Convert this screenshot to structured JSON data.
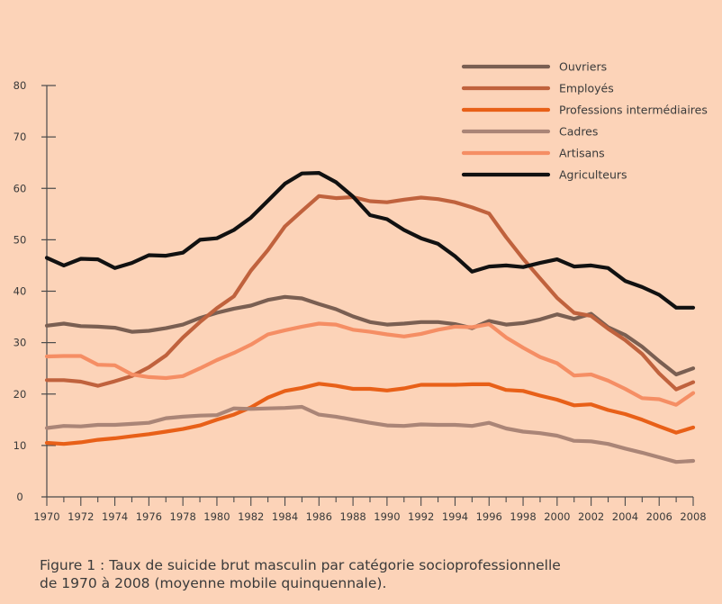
{
  "caption": {
    "line1": "Figure 1 : Taux de suicide brut masculin par catégorie socioprofessionnelle",
    "line2": "de 1970 à 2008 (moyenne mobile quinquennale)."
  },
  "chart_data": {
    "type": "line",
    "x": [
      1970,
      1971,
      1972,
      1973,
      1974,
      1975,
      1976,
      1977,
      1978,
      1979,
      1980,
      1981,
      1982,
      1983,
      1984,
      1985,
      1986,
      1987,
      1988,
      1989,
      1990,
      1991,
      1992,
      1993,
      1994,
      1995,
      1996,
      1997,
      1998,
      1999,
      2000,
      2001,
      2002,
      2003,
      2004,
      2005,
      2006,
      2007,
      2008
    ],
    "xticks": [
      1970,
      1972,
      1974,
      1976,
      1978,
      1980,
      1982,
      1984,
      1986,
      1988,
      1990,
      1992,
      1994,
      1996,
      1998,
      2000,
      2002,
      2004,
      2006,
      2008
    ],
    "yticks": [
      0,
      10,
      20,
      30,
      40,
      50,
      60,
      70,
      80
    ],
    "ylim": [
      0,
      80
    ],
    "xlim": [
      1970,
      2008
    ],
    "legend_position": "top-right",
    "grid": false,
    "series": [
      {
        "name": "Ouvriers",
        "color": "#7a5f52",
        "values": [
          33.3,
          33.7,
          33.2,
          33.1,
          32.9,
          32.1,
          32.3,
          32.8,
          33.5,
          34.8,
          35.8,
          36.6,
          37.2,
          38.3,
          38.9,
          38.6,
          37.5,
          36.5,
          35.1,
          34.0,
          33.5,
          33.7,
          34.0,
          34.0,
          33.6,
          32.8,
          34.2,
          33.5,
          33.8,
          34.5,
          35.5,
          34.6,
          35.6,
          33.0,
          31.5,
          29.2,
          26.4,
          23.8,
          25.0
        ]
      },
      {
        "name": "Employés",
        "color": "#c0623d",
        "values": [
          22.7,
          22.7,
          22.4,
          21.6,
          22.5,
          23.5,
          25.2,
          27.5,
          31.0,
          34.0,
          36.7,
          39.0,
          44.0,
          48.0,
          52.6,
          55.6,
          58.5,
          58.1,
          58.3,
          57.5,
          57.3,
          57.8,
          58.2,
          57.9,
          57.3,
          56.3,
          55.1,
          50.5,
          46.3,
          42.5,
          38.7,
          35.8,
          35.2,
          32.7,
          30.5,
          27.8,
          24.0,
          20.9,
          22.3
        ]
      },
      {
        "name": "Professions intermédiaires",
        "color": "#e86018",
        "values": [
          10.5,
          10.3,
          10.6,
          11.1,
          11.4,
          11.8,
          12.2,
          12.7,
          13.2,
          13.9,
          15.0,
          16.0,
          17.4,
          19.3,
          20.6,
          21.2,
          22.0,
          21.6,
          21.0,
          21.0,
          20.7,
          21.1,
          21.8,
          21.8,
          21.8,
          21.9,
          21.9,
          20.8,
          20.6,
          19.7,
          18.9,
          17.8,
          18.0,
          16.9,
          16.1,
          15.0,
          13.7,
          12.5,
          13.5
        ]
      },
      {
        "name": "Cadres",
        "color": "#aa8577",
        "values": [
          13.4,
          13.8,
          13.7,
          14.0,
          14.0,
          14.2,
          14.4,
          15.3,
          15.6,
          15.8,
          15.9,
          17.2,
          17.1,
          17.2,
          17.3,
          17.5,
          16.0,
          15.6,
          15.0,
          14.4,
          13.9,
          13.8,
          14.1,
          14.0,
          14.0,
          13.8,
          14.4,
          13.3,
          12.7,
          12.4,
          11.9,
          10.9,
          10.8,
          10.3,
          9.4,
          8.6,
          7.7,
          6.8,
          7.0
        ]
      },
      {
        "name": "Artisans",
        "color": "#f58e64",
        "values": [
          27.3,
          27.4,
          27.4,
          25.7,
          25.6,
          23.8,
          23.3,
          23.1,
          23.5,
          25.0,
          26.6,
          28.0,
          29.6,
          31.6,
          32.4,
          33.1,
          33.7,
          33.5,
          32.5,
          32.1,
          31.6,
          31.2,
          31.7,
          32.5,
          33.1,
          33.0,
          33.6,
          31.0,
          29.0,
          27.2,
          26.0,
          23.6,
          23.8,
          22.6,
          21.0,
          19.2,
          19.0,
          17.9,
          20.2
        ]
      },
      {
        "name": "Agriculteurs",
        "color": "#111111",
        "values": [
          46.5,
          45.0,
          46.3,
          46.2,
          44.5,
          45.5,
          47.0,
          46.9,
          47.5,
          50.0,
          50.3,
          51.9,
          54.3,
          57.6,
          60.9,
          62.9,
          63.0,
          61.2,
          58.4,
          54.8,
          54.0,
          51.9,
          50.3,
          49.2,
          46.8,
          43.8,
          44.8,
          45.0,
          44.7,
          45.5,
          46.2,
          44.8,
          45.0,
          44.5,
          42.0,
          40.8,
          39.3,
          36.8,
          36.8
        ]
      }
    ]
  }
}
